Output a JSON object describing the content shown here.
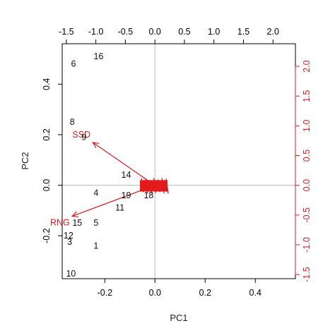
{
  "chart_data": {
    "type": "scatter",
    "subtype": "pca-biplot",
    "title": "",
    "xlabel": "PC1",
    "ylabel": "PC2",
    "xlim": [
      -0.37,
      0.56
    ],
    "ylim": [
      -0.37,
      0.56
    ],
    "x_ticks": [
      "-0.2",
      "0.0",
      "0.2",
      "0.4"
    ],
    "y_ticks": [
      "-0.2",
      "0.0",
      "0.2",
      "0.4"
    ],
    "loading_x_ticks": [
      "-1.5",
      "-1.0",
      "-0.5",
      "0.0",
      "0.5",
      "1.0",
      "1.5",
      "2.0"
    ],
    "loading_y_ticks": [
      "-1.5",
      "-1.0",
      "-0.5",
      "0.0",
      "0.5",
      "1.0",
      "1.5",
      "2.0"
    ],
    "loading_xlim": [
      -1.57,
      2.38
    ],
    "loading_ylim": [
      -1.57,
      2.38
    ],
    "colors": {
      "observations": "#111111",
      "loadings": "#e31a1c",
      "reference_lines": "#bbbbbb"
    },
    "observations": [
      {
        "label": "16",
        "x": -0.225,
        "y": 0.51
      },
      {
        "label": "6",
        "x": -0.325,
        "y": 0.48
      },
      {
        "label": "8",
        "x": -0.33,
        "y": 0.25
      },
      {
        "label": "9",
        "x": -0.283,
        "y": 0.19
      },
      {
        "label": "14",
        "x": -0.115,
        "y": 0.04
      },
      {
        "label": "4",
        "x": -0.235,
        "y": -0.03
      },
      {
        "label": "19",
        "x": -0.115,
        "y": -0.04
      },
      {
        "label": "18",
        "x": -0.025,
        "y": -0.04
      },
      {
        "label": "11",
        "x": -0.14,
        "y": -0.09
      },
      {
        "label": "15",
        "x": -0.31,
        "y": -0.15
      },
      {
        "label": "5",
        "x": -0.235,
        "y": -0.15
      },
      {
        "label": "12",
        "x": -0.345,
        "y": -0.2
      },
      {
        "label": "3",
        "x": -0.34,
        "y": -0.225
      },
      {
        "label": "1",
        "x": -0.235,
        "y": -0.24
      },
      {
        "label": "10",
        "x": -0.335,
        "y": -0.35
      }
    ],
    "cluster": {
      "label": "",
      "x_from": -0.06,
      "x_to": 0.05,
      "y_from": -0.025,
      "y_to": 0.02,
      "note": "overlapping variable labels near origin"
    },
    "loadings": [
      {
        "name": "SSD",
        "x": -1.05,
        "y": 0.72
      },
      {
        "name": "RNG",
        "x": -1.4,
        "y": -0.52
      }
    ]
  }
}
